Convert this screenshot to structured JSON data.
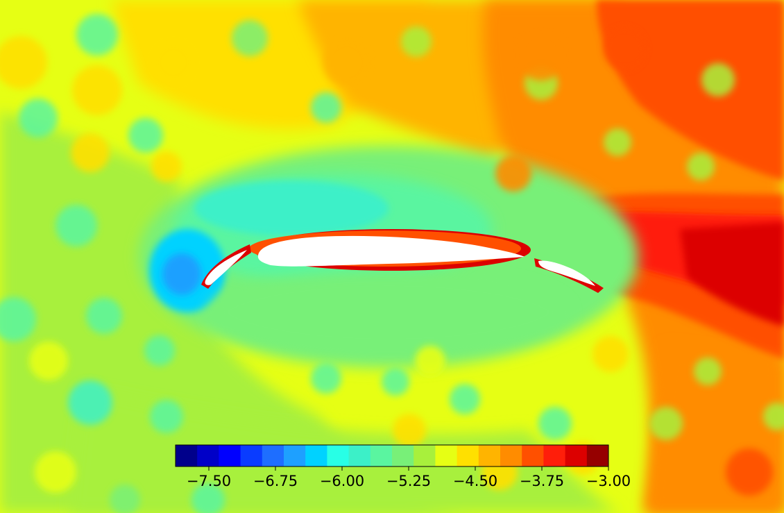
{
  "chart_data": {
    "type": "heatmap",
    "title": "",
    "xlabel": "",
    "ylabel": "",
    "colormap": "jet",
    "levels": [
      -7.875,
      -7.625,
      -7.375,
      -7.125,
      -6.875,
      -6.625,
      -6.375,
      -6.125,
      -5.875,
      -5.625,
      -5.375,
      -5.125,
      -4.875,
      -4.625,
      -4.375,
      -4.125,
      -3.875,
      -3.625,
      -3.375,
      -3.125
    ],
    "level_colors": [
      "#00008b",
      "#0000c8",
      "#0000ff",
      "#0a3cff",
      "#1e6eff",
      "#1ea0ff",
      "#00d2ff",
      "#28ffe6",
      "#3cf0c8",
      "#5af5a0",
      "#78f078",
      "#a8f03c",
      "#e6ff14",
      "#ffe000",
      "#ffb400",
      "#ff8c00",
      "#ff5000",
      "#ff1e0a",
      "#dc0000",
      "#960000"
    ],
    "colorbar": {
      "vmin": -7.875,
      "vmax": -3.0,
      "tick_values": [
        -7.5,
        -6.75,
        -6.0,
        -5.25,
        -4.5,
        -3.75,
        -3.0
      ],
      "tick_labels": [
        "−7.50",
        "−6.75",
        "−6.00",
        "−5.25",
        "−4.50",
        "−3.75",
        "−3.00"
      ]
    },
    "bodies": [
      "leading-edge slat",
      "main airfoil",
      "trailing-edge flap"
    ],
    "field_regions": [
      {
        "region": "far field left and bottom",
        "value": -4.9
      },
      {
        "region": "far field top centre",
        "value": -4.6
      },
      {
        "region": "upper right",
        "value": -3.9
      },
      {
        "region": "wake right",
        "value": -3.4
      },
      {
        "region": "near airfoil upper suction",
        "value": -5.8
      },
      {
        "region": "slat gap",
        "value": -6.6
      },
      {
        "region": "airfoil surface edges",
        "value": -3.2
      }
    ]
  }
}
